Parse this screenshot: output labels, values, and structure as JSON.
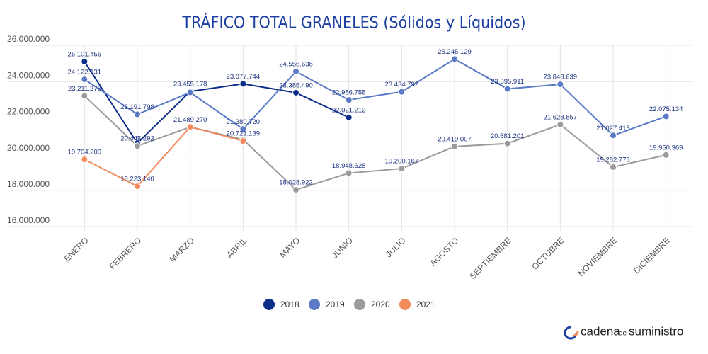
{
  "chart_data": {
    "type": "line",
    "title": "TRÁFICO TOTAL GRANELES (Sólidos y Líquidos)",
    "categories": [
      "ENERO",
      "FEBRERO",
      "MARZO",
      "ABRIL",
      "MAYO",
      "JUNIO",
      "JULIO",
      "AGOSTO",
      "SEPTIEMBRE",
      "OCTUBRE",
      "NOVIEMBRE",
      "DICIEMBRE"
    ],
    "series": [
      {
        "name": "2018",
        "color": "#0b2e8a",
        "values": [
          25101456,
          20600000,
          23455178,
          23877744,
          23385490,
          22021212,
          null,
          null,
          null,
          null,
          null,
          null
        ],
        "value_labels": [
          "25.101.456",
          null,
          "23.455.178",
          "23.877.744",
          "23.385.490",
          "22.021.212",
          null,
          null,
          null,
          null,
          null,
          null
        ]
      },
      {
        "name": "2019",
        "color": "#5a7ac6",
        "values": [
          24122131,
          22191798,
          23400000,
          21380720,
          24556638,
          22986755,
          23434792,
          25245129,
          23595911,
          23848639,
          21027415,
          22075134
        ],
        "value_labels": [
          "24.122.131",
          "22.191.798",
          null,
          "21.380.720",
          "24.556.638",
          "22.986.755",
          "23.434.792",
          "25.245.129",
          "23.595.911",
          "23.848.639",
          "21.027.415",
          "22.075.134"
        ]
      },
      {
        "name": "2020",
        "color": "#9b9b9b",
        "values": [
          23211278,
          20445292,
          21489270,
          20800000,
          18028922,
          18948628,
          19200167,
          20419007,
          20581201,
          21628857,
          19282775,
          19950369
        ],
        "value_labels": [
          "23.211.278",
          "20.445.292",
          "21.489.270",
          null,
          "18.028.922",
          "18.948.628",
          "19.200.167",
          "20.419.007",
          "20.581.201",
          "21.628.857",
          "19.282.775",
          "19.950.369"
        ]
      },
      {
        "name": "2021",
        "color": "#f28a5c",
        "values": [
          19704200,
          18223140,
          21500000,
          20721139,
          null,
          null,
          null,
          null,
          null,
          null,
          null,
          null
        ],
        "value_labels": [
          "19.704.200",
          "18.223.140",
          null,
          "20.721.139",
          null,
          null,
          null,
          null,
          null,
          null,
          null,
          null
        ]
      }
    ],
    "ylim": [
      16000000,
      26000000
    ],
    "yticks": [
      {
        "value": 16000000,
        "label": "16.000.000"
      },
      {
        "value": 18000000,
        "label": "18.000.000"
      },
      {
        "value": 20000000,
        "label": "20.000.000"
      },
      {
        "value": 22000000,
        "label": "22.000.000"
      },
      {
        "value": 24000000,
        "label": "24.000.000"
      },
      {
        "value": 26000000,
        "label": "26.000.000"
      }
    ],
    "grid": true,
    "legend": "bottom",
    "footer": {
      "brand": "cadena",
      "connector": "de",
      "brand2": "suministro"
    }
  }
}
